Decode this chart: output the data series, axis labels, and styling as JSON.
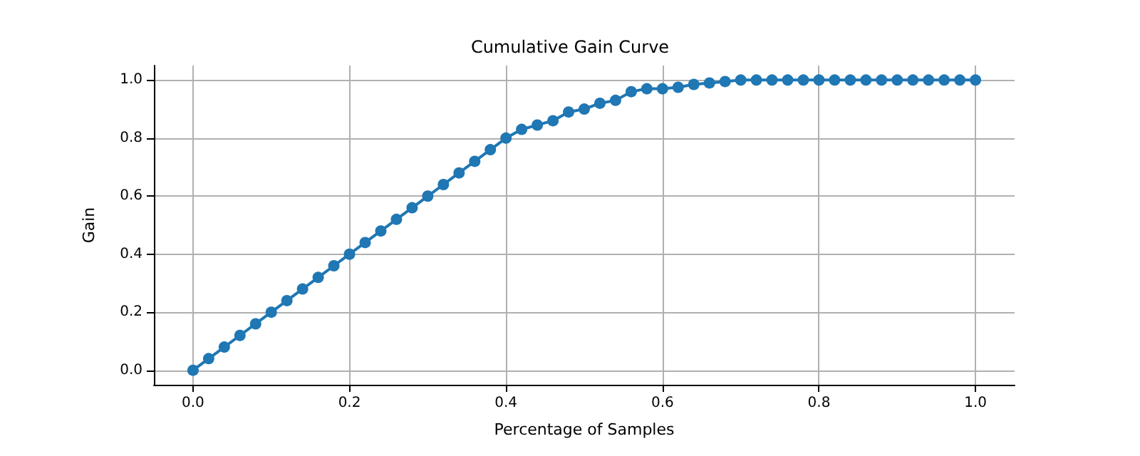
{
  "chart_data": {
    "type": "line",
    "title": "Cumulative Gain Curve",
    "xlabel": "Percentage of Samples",
    "ylabel": "Gain",
    "x": [
      0,
      0.02,
      0.04,
      0.06,
      0.08,
      0.1,
      0.12,
      0.14,
      0.16,
      0.18,
      0.2,
      0.22,
      0.24,
      0.26,
      0.28,
      0.3,
      0.32,
      0.34,
      0.36,
      0.38,
      0.4,
      0.42,
      0.44,
      0.46,
      0.48,
      0.5,
      0.52,
      0.54,
      0.56,
      0.58,
      0.6,
      0.62,
      0.64,
      0.66,
      0.68,
      0.7,
      0.72,
      0.74,
      0.76,
      0.78,
      0.8,
      0.82,
      0.84,
      0.86,
      0.88,
      0.9,
      0.92,
      0.94,
      0.96,
      0.98,
      1.0
    ],
    "series": [
      {
        "color": "#1f77b4",
        "values": [
          0,
          0.04,
          0.08,
          0.12,
          0.16,
          0.2,
          0.24,
          0.28,
          0.32,
          0.36,
          0.4,
          0.44,
          0.48,
          0.52,
          0.56,
          0.6,
          0.64,
          0.68,
          0.72,
          0.76,
          0.8,
          0.83,
          0.845,
          0.86,
          0.89,
          0.9,
          0.92,
          0.93,
          0.96,
          0.97,
          0.97,
          0.975,
          0.985,
          0.99,
          0.995,
          1,
          1,
          1,
          1,
          1,
          1,
          1,
          1,
          1,
          1,
          1,
          1,
          1,
          1,
          1,
          1
        ]
      }
    ],
    "xlim": [
      -0.05,
      1.05
    ],
    "ylim": [
      -0.05,
      1.05
    ],
    "xticks": [
      {
        "value": 0,
        "label": "0.0"
      },
      {
        "value": 0.2,
        "label": "0.2"
      },
      {
        "value": 0.4,
        "label": "0.4"
      },
      {
        "value": 0.6,
        "label": "0.6"
      },
      {
        "value": 0.8,
        "label": "0.8"
      },
      {
        "value": 1,
        "label": "1.0"
      }
    ],
    "yticks": [
      {
        "value": 0,
        "label": "0.0"
      },
      {
        "value": 0.2,
        "label": "0.2"
      },
      {
        "value": 0.4,
        "label": "0.4"
      },
      {
        "value": 0.6,
        "label": "0.6"
      },
      {
        "value": 0.8,
        "label": "0.8"
      },
      {
        "value": 1,
        "label": "1.0"
      }
    ],
    "grid": true,
    "marker": "circle",
    "line_style": "solid"
  }
}
